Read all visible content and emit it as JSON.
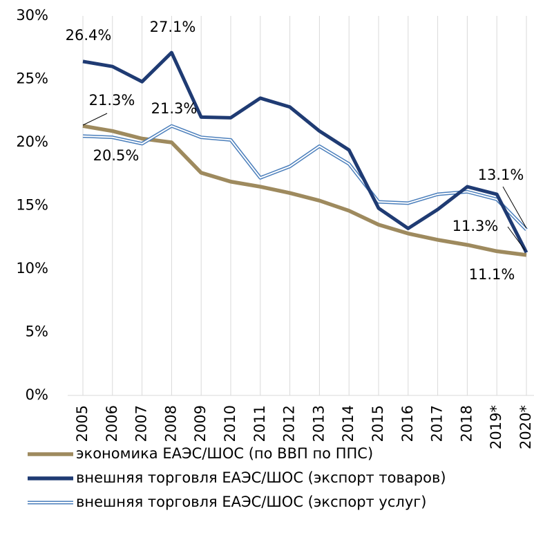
{
  "chart_data": {
    "type": "line",
    "categories": [
      "2005",
      "2006",
      "2007",
      "2008",
      "2009",
      "2010",
      "2011",
      "2012",
      "2013",
      "2014",
      "2015",
      "2016",
      "2017",
      "2018",
      "2019*",
      "2020*"
    ],
    "series": [
      {
        "name": "экономика ЕАЭС/ШОС (по ВВП по ППС)",
        "color": "#9e8a5e",
        "style": "solid",
        "values": [
          21.3,
          20.9,
          20.3,
          20.0,
          17.6,
          16.9,
          16.5,
          16.0,
          15.4,
          14.6,
          13.5,
          12.8,
          12.3,
          11.9,
          11.4,
          11.1
        ],
        "value_labels": [
          "21.3%",
          null,
          null,
          null,
          null,
          null,
          null,
          null,
          null,
          null,
          null,
          null,
          null,
          null,
          null,
          "11.1%"
        ]
      },
      {
        "name": "внешняя торговля ЕАЭС/ШОС (экспорт товаров)",
        "color": "#1f3b73",
        "style": "solid",
        "values": [
          26.4,
          26.0,
          24.8,
          27.1,
          22.0,
          21.95,
          23.5,
          22.8,
          20.9,
          19.4,
          14.8,
          13.2,
          14.7,
          16.5,
          15.9,
          11.3
        ],
        "value_labels": [
          "26.4%",
          null,
          null,
          "27.1%",
          null,
          null,
          null,
          null,
          null,
          null,
          null,
          null,
          null,
          null,
          null,
          "11.3%"
        ]
      },
      {
        "name": "внешняя торговля ЕАЭС/ШОС (экспорт услуг)",
        "color": "#4a7ebb",
        "style": "double",
        "values": [
          20.5,
          20.4,
          19.9,
          21.3,
          20.4,
          20.2,
          17.2,
          18.1,
          19.7,
          18.3,
          15.3,
          15.2,
          15.9,
          16.1,
          15.5,
          13.1
        ],
        "value_labels": [
          "20.5%",
          null,
          null,
          "21.3%",
          null,
          null,
          null,
          null,
          null,
          null,
          null,
          null,
          null,
          null,
          null,
          "13.1%"
        ]
      }
    ],
    "ylim": [
      0,
      30
    ],
    "yticks": [
      {
        "value": 0,
        "label": "0%"
      },
      {
        "value": 5,
        "label": "5%"
      },
      {
        "value": 10,
        "label": "10%"
      },
      {
        "value": 15,
        "label": "15%"
      },
      {
        "value": 20,
        "label": "20%"
      },
      {
        "value": 25,
        "label": "25%"
      },
      {
        "value": 30,
        "label": "30%"
      }
    ],
    "grid": "x"
  }
}
